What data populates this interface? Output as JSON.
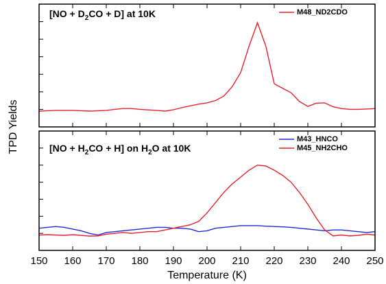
{
  "chart_data": [
    {
      "type": "line",
      "title": "[NO + D2CO + D] at 10K",
      "ylabel": "TPD Yields",
      "x": [
        150,
        152.5,
        155,
        157.5,
        160,
        162.5,
        165,
        167.5,
        170,
        172.5,
        175,
        177.5,
        180,
        182.5,
        185,
        187.5,
        190,
        192.5,
        195,
        197.5,
        200,
        202.5,
        205,
        207.5,
        210,
        212.5,
        215,
        217.5,
        220,
        222.5,
        225,
        227.5,
        230,
        232.5,
        235,
        237.5,
        240,
        242.5,
        245,
        247.5,
        250
      ],
      "series": [
        {
          "name": "M48_ND2CDO",
          "color": "#e8202a",
          "values": [
            0.9,
            0.92,
            0.94,
            0.94,
            0.94,
            0.92,
            0.9,
            0.92,
            0.94,
            1.0,
            1.05,
            1.05,
            1.0,
            0.97,
            0.94,
            0.9,
            0.98,
            1.1,
            1.2,
            1.3,
            1.37,
            1.5,
            1.76,
            2.3,
            3.1,
            4.6,
            5.94,
            4.6,
            2.46,
            2.2,
            1.95,
            1.45,
            1.17,
            1.35,
            1.37,
            1.15,
            1.05,
            1.0,
            1.0,
            1.02,
            1.05
          ]
        }
      ],
      "xlim": [
        150,
        250
      ],
      "xticks": [
        150,
        160,
        170,
        180,
        190,
        200,
        210,
        220,
        230,
        240,
        250
      ],
      "ylim": [
        0,
        7
      ],
      "yticks": [
        0,
        1,
        2,
        3,
        4,
        5,
        6,
        7
      ],
      "show_xtick_labels": false,
      "legend": "upper right"
    },
    {
      "type": "line",
      "title": "[NO + H2CO + H] on H2O at 10K",
      "xlabel": "Temperature (K)",
      "x": [
        150,
        152.5,
        155,
        157.5,
        160,
        162.5,
        165,
        167.5,
        170,
        172.5,
        175,
        177.5,
        180,
        182.5,
        185,
        187.5,
        190,
        192.5,
        195,
        197.5,
        200,
        202.5,
        205,
        207.5,
        210,
        212.5,
        215,
        217.5,
        220,
        222.5,
        225,
        227.5,
        230,
        232.5,
        235,
        237.5,
        240,
        242.5,
        245,
        247.5,
        250
      ],
      "series": [
        {
          "name": "M43_HNCO",
          "color": "#1f2ad6",
          "values": [
            1.3,
            1.35,
            1.4,
            1.35,
            1.25,
            1.15,
            1.0,
            0.9,
            1.05,
            1.1,
            1.15,
            1.2,
            1.25,
            1.3,
            1.35,
            1.35,
            1.3,
            1.3,
            1.25,
            1.1,
            1.15,
            1.3,
            1.35,
            1.4,
            1.45,
            1.45,
            1.45,
            1.42,
            1.4,
            1.38,
            1.35,
            1.3,
            1.25,
            1.2,
            1.15,
            1.2,
            1.2,
            1.15,
            1.1,
            1.05,
            1.1
          ]
        },
        {
          "name": "M45_NH2CHO",
          "color": "#e8202a",
          "values": [
            0.9,
            0.92,
            0.9,
            0.88,
            0.92,
            0.88,
            0.84,
            0.85,
            0.95,
            1.0,
            1.05,
            1.0,
            1.05,
            1.1,
            1.1,
            1.2,
            1.3,
            1.4,
            1.5,
            1.7,
            2.2,
            2.8,
            3.4,
            3.9,
            4.3,
            4.7,
            5.0,
            4.95,
            4.7,
            4.4,
            4.0,
            3.4,
            2.7,
            1.9,
            1.2,
            0.85,
            0.9,
            0.85,
            0.88,
            0.95,
            0.9
          ]
        }
      ],
      "xlim": [
        150,
        250
      ],
      "xticks": [
        150,
        160,
        170,
        180,
        190,
        200,
        210,
        220,
        230,
        240,
        250
      ],
      "ylim": [
        0,
        7
      ],
      "yticks": [
        0,
        1,
        2,
        3,
        4,
        5,
        6,
        7
      ],
      "show_xtick_labels": true,
      "legend": "upper right"
    }
  ]
}
